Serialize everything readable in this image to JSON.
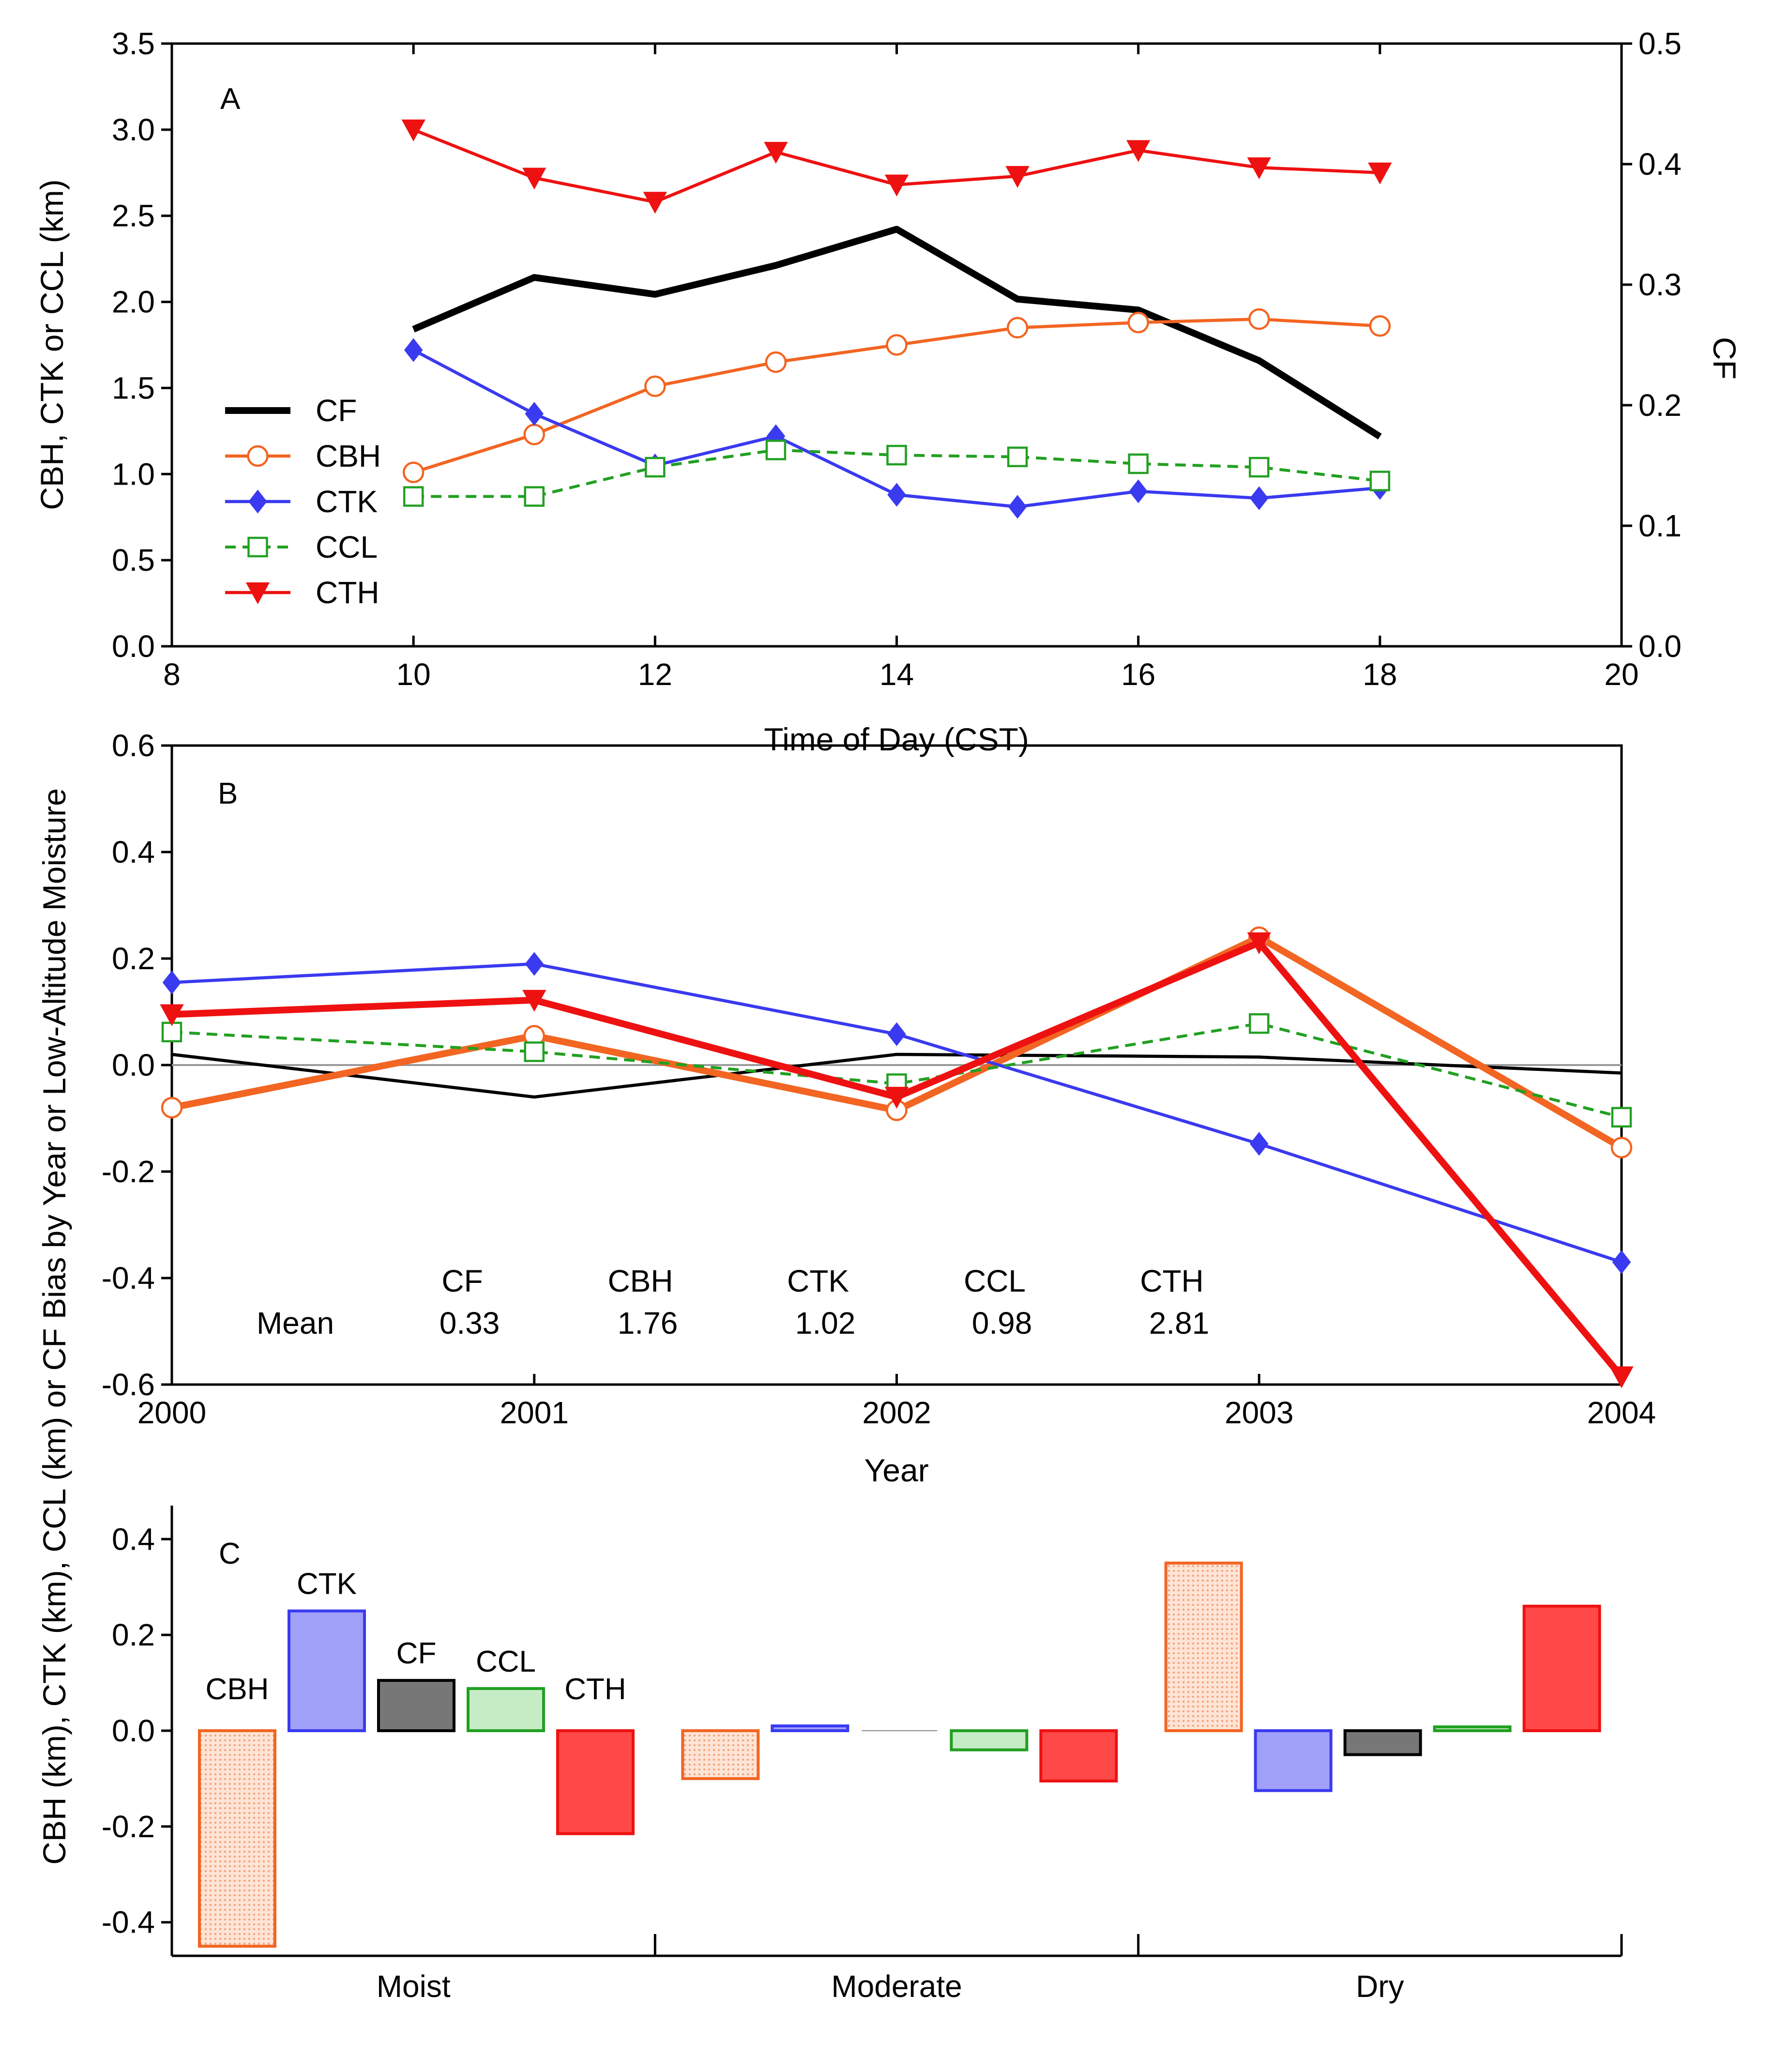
{
  "chart_data": [
    {
      "panel": "A",
      "type": "line",
      "xlabel": "Time of Day (CST)",
      "ylabel": "CBH, CTK or CCL (km)",
      "y2label": "CF",
      "xlim": [
        8,
        20
      ],
      "ylim": [
        0,
        3.5
      ],
      "y2lim": [
        0,
        0.5
      ],
      "xticks": [
        "8",
        "10",
        "12",
        "14",
        "16",
        "18",
        "20"
      ],
      "yticks": [
        "0.0",
        "0.5",
        "1.0",
        "1.5",
        "2.0",
        "2.5",
        "3.0",
        "3.5"
      ],
      "y2ticks": [
        "0.0",
        "0.1",
        "0.2",
        "0.3",
        "0.4",
        "0.5"
      ],
      "legend_position": "left",
      "x": [
        10,
        11,
        12,
        13,
        14,
        15,
        16,
        17,
        18
      ],
      "series": [
        {
          "name": "CF",
          "axis": "right",
          "color": "#000000",
          "marker": "none",
          "style": "solid-thick",
          "values": [
            0.263,
            0.306,
            0.292,
            0.316,
            0.346,
            0.288,
            0.279,
            0.237,
            0.174
          ]
        },
        {
          "name": "CBH",
          "axis": "left",
          "color": "#f26522",
          "marker": "open-circle",
          "style": "solid",
          "values": [
            1.01,
            1.23,
            1.51,
            1.65,
            1.75,
            1.85,
            1.88,
            1.9,
            1.86
          ]
        },
        {
          "name": "CTK",
          "axis": "left",
          "color": "#3a3af0",
          "marker": "filled-diamond",
          "style": "solid",
          "values": [
            1.72,
            1.35,
            1.05,
            1.22,
            0.88,
            0.81,
            0.9,
            0.86,
            0.92
          ]
        },
        {
          "name": "CCL",
          "axis": "left",
          "color": "#22a022",
          "marker": "open-square",
          "style": "dashed",
          "values": [
            0.87,
            0.87,
            1.04,
            1.14,
            1.11,
            1.1,
            1.06,
            1.04,
            0.96
          ]
        },
        {
          "name": "CTH",
          "axis": "left",
          "color": "#ee1111",
          "marker": "filled-down-triangle",
          "style": "solid",
          "values": [
            3.0,
            2.72,
            2.58,
            2.87,
            2.68,
            2.73,
            2.88,
            2.78,
            2.75
          ]
        }
      ]
    },
    {
      "panel": "B",
      "type": "line",
      "xlabel": "Year",
      "ylabel": "CBH (km), CTK (km), CCL (km) or CF Bias by Year or Low-Altitude Moisture",
      "xlim": [
        2000,
        2004
      ],
      "ylim": [
        -0.6,
        0.6
      ],
      "xticks": [
        "2000",
        "2001",
        "2002",
        "2003",
        "2004"
      ],
      "yticks": [
        "-0.6",
        "-0.4",
        "-0.2",
        "0.0",
        "0.2",
        "0.4",
        "0.6"
      ],
      "x": [
        2000,
        2001,
        2002,
        2003,
        2004
      ],
      "series": [
        {
          "name": "CF",
          "color": "#000000",
          "marker": "none",
          "style": "solid",
          "values": [
            0.02,
            -0.06,
            0.02,
            0.015,
            -0.015
          ]
        },
        {
          "name": "CBH",
          "color": "#f26522",
          "marker": "open-circle",
          "style": "solid-thick",
          "values": [
            -0.08,
            0.055,
            -0.085,
            0.24,
            -0.155
          ]
        },
        {
          "name": "CTK",
          "color": "#3a3af0",
          "marker": "filled-diamond",
          "style": "solid",
          "values": [
            0.155,
            0.19,
            0.058,
            -0.148,
            -0.37
          ]
        },
        {
          "name": "CCL",
          "color": "#22a022",
          "marker": "open-square",
          "style": "dashed",
          "values": [
            0.062,
            0.025,
            -0.035,
            0.078,
            -0.098
          ]
        },
        {
          "name": "CTH",
          "color": "#ee1111",
          "marker": "filled-down-triangle",
          "style": "solid-thick",
          "values": [
            0.095,
            0.122,
            -0.06,
            0.23,
            -0.585
          ]
        }
      ],
      "mean_table": {
        "row_label": "Mean",
        "columns": [
          "CF",
          "CBH",
          "CTK",
          "CCL",
          "CTH"
        ],
        "values": [
          "0.33",
          "1.76",
          "1.02",
          "0.98",
          "2.81"
        ]
      }
    },
    {
      "panel": "C",
      "type": "bar",
      "ylim": [
        -0.47,
        0.47
      ],
      "yticks": [
        "-0.4",
        "-0.2",
        "0.0",
        "0.2",
        "0.4"
      ],
      "categories": [
        "Moist",
        "Moderate",
        "Dry"
      ],
      "series": [
        {
          "name": "CBH",
          "fill": "#fbd2bc",
          "stroke": "#f26522",
          "pattern": "dotted",
          "values": [
            -0.45,
            -0.1,
            0.35
          ]
        },
        {
          "name": "CTK",
          "fill": "#a0a0f8",
          "stroke": "#3a3af0",
          "values": [
            0.25,
            0.01,
            -0.125
          ]
        },
        {
          "name": "CF",
          "fill": "#777777",
          "stroke": "#000000",
          "values": [
            0.105,
            0.0,
            -0.05
          ]
        },
        {
          "name": "CCL",
          "fill": "#c6ecc6",
          "stroke": "#22a022",
          "values": [
            0.088,
            -0.04,
            0.008
          ]
        },
        {
          "name": "CTH",
          "fill": "#ff4848",
          "stroke": "#ee1111",
          "values": [
            -0.215,
            -0.105,
            0.26
          ]
        }
      ],
      "bar_labels_shown_in": "Moist"
    }
  ]
}
